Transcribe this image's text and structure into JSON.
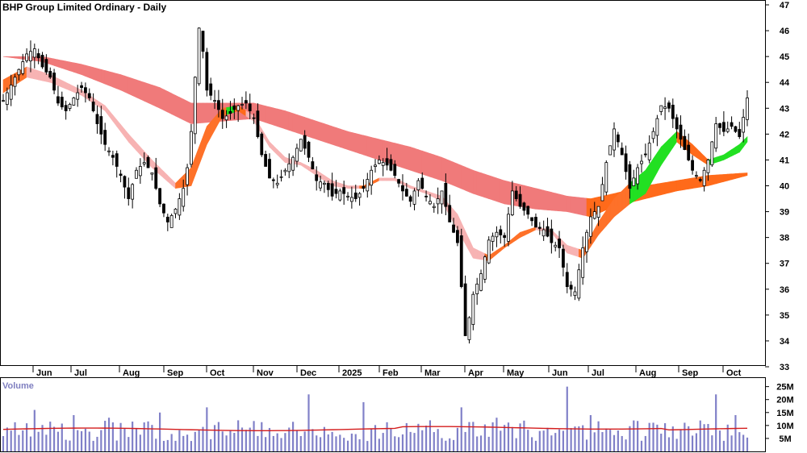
{
  "chart_data": {
    "type": "candlestick",
    "title": "BHP Group Limited Ordinary - Daily",
    "price_ylim": [
      33,
      47
    ],
    "price_ticks": [
      "33",
      "34",
      "35",
      "36",
      "37",
      "38",
      "39",
      "40",
      "41",
      "42",
      "43",
      "44",
      "45",
      "46",
      "47"
    ],
    "x_labels": [
      "Jun",
      "Jul",
      "Aug",
      "Sep",
      "Oct",
      "Nov",
      "Dec",
      "2025",
      "Feb",
      "Mar",
      "Apr",
      "May",
      "Jun",
      "Jul",
      "Aug",
      "Sep",
      "Oct"
    ],
    "close_path": [
      [
        0,
        43.3
      ],
      [
        3,
        44.2
      ],
      [
        6,
        45.1
      ],
      [
        8,
        45.3
      ],
      [
        10,
        44.6
      ],
      [
        12,
        44.2
      ],
      [
        14,
        43.2
      ],
      [
        16,
        42.9
      ],
      [
        18,
        43.4
      ],
      [
        20,
        43.8
      ],
      [
        22,
        43.4
      ],
      [
        24,
        42.4
      ],
      [
        26,
        41.6
      ],
      [
        28,
        41.1
      ],
      [
        30,
        40.4
      ],
      [
        32,
        39.5
      ],
      [
        34,
        40.6
      ],
      [
        36,
        40.9
      ],
      [
        38,
        40.5
      ],
      [
        40,
        39.3
      ],
      [
        42,
        38.6
      ],
      [
        44,
        39.1
      ],
      [
        46,
        39.9
      ],
      [
        47,
        40.7
      ],
      [
        48,
        42.1
      ],
      [
        49,
        44.2
      ],
      [
        50,
        46.1
      ],
      [
        51,
        45.2
      ],
      [
        52,
        43.7
      ],
      [
        54,
        43.3
      ],
      [
        56,
        42.6
      ],
      [
        58,
        42.8
      ],
      [
        60,
        43.1
      ],
      [
        62,
        43.2
      ],
      [
        64,
        42.6
      ],
      [
        66,
        41.2
      ],
      [
        68,
        40.3
      ],
      [
        70,
        40.1
      ],
      [
        72,
        40.6
      ],
      [
        74,
        41.1
      ],
      [
        76,
        41.8
      ],
      [
        78,
        41.1
      ],
      [
        80,
        40.2
      ],
      [
        82,
        40.1
      ],
      [
        84,
        39.6
      ],
      [
        86,
        39.8
      ],
      [
        88,
        39.6
      ],
      [
        90,
        39.5
      ],
      [
        92,
        39.9
      ],
      [
        94,
        40.6
      ],
      [
        96,
        41.0
      ],
      [
        98,
        40.8
      ],
      [
        100,
        40.4
      ],
      [
        102,
        39.8
      ],
      [
        104,
        39.4
      ],
      [
        106,
        40.2
      ],
      [
        108,
        39.6
      ],
      [
        110,
        39.2
      ],
      [
        112,
        39.8
      ],
      [
        114,
        38.6
      ],
      [
        116,
        37.8
      ],
      [
        117,
        36.1
      ],
      [
        118,
        34.2
      ],
      [
        119,
        34.9
      ],
      [
        120,
        35.8
      ],
      [
        122,
        36.6
      ],
      [
        124,
        37.9
      ],
      [
        126,
        38.2
      ],
      [
        128,
        38.0
      ],
      [
        130,
        39.8
      ],
      [
        132,
        39.2
      ],
      [
        134,
        38.9
      ],
      [
        136,
        38.4
      ],
      [
        138,
        38.3
      ],
      [
        140,
        37.8
      ],
      [
        142,
        37.6
      ],
      [
        144,
        36.1
      ],
      [
        146,
        35.9
      ],
      [
        148,
        37.6
      ],
      [
        150,
        38.8
      ],
      [
        152,
        39.2
      ],
      [
        154,
        40.9
      ],
      [
        156,
        42.2
      ],
      [
        158,
        41.2
      ],
      [
        160,
        39.9
      ],
      [
        162,
        40.7
      ],
      [
        164,
        41.2
      ],
      [
        166,
        42.1
      ],
      [
        168,
        43.1
      ],
      [
        170,
        43.0
      ],
      [
        172,
        42.2
      ],
      [
        174,
        41.4
      ],
      [
        176,
        40.6
      ],
      [
        178,
        40.2
      ],
      [
        180,
        41.0
      ],
      [
        182,
        42.4
      ],
      [
        184,
        42.1
      ],
      [
        186,
        42.3
      ],
      [
        188,
        41.9
      ],
      [
        190,
        43.4
      ]
    ],
    "ribbons": [
      {
        "role": "fast",
        "upper": [
          [
            0,
            44.1
          ],
          [
            6,
            44.6
          ],
          [
            12,
            44.3
          ],
          [
            20,
            43.7
          ],
          [
            26,
            43.1
          ],
          [
            32,
            42.0
          ],
          [
            38,
            41.0
          ],
          [
            44,
            40.1
          ],
          [
            48,
            40.7
          ],
          [
            52,
            42.3
          ],
          [
            56,
            43.0
          ],
          [
            60,
            43.1
          ],
          [
            64,
            42.7
          ],
          [
            68,
            41.7
          ],
          [
            72,
            41.1
          ],
          [
            76,
            40.9
          ],
          [
            80,
            40.6
          ],
          [
            84,
            40.2
          ],
          [
            88,
            40.0
          ],
          [
            92,
            40.0
          ],
          [
            96,
            40.3
          ],
          [
            100,
            40.3
          ],
          [
            104,
            40.0
          ],
          [
            108,
            39.8
          ],
          [
            112,
            39.6
          ],
          [
            116,
            38.9
          ],
          [
            120,
            37.6
          ],
          [
            124,
            37.3
          ],
          [
            128,
            37.7
          ],
          [
            132,
            38.2
          ],
          [
            136,
            38.4
          ],
          [
            140,
            38.3
          ],
          [
            144,
            37.7
          ],
          [
            148,
            37.5
          ],
          [
            152,
            38.6
          ],
          [
            156,
            39.5
          ],
          [
            160,
            40.1
          ],
          [
            164,
            40.6
          ],
          [
            168,
            41.5
          ],
          [
            172,
            42.1
          ],
          [
            176,
            41.6
          ],
          [
            180,
            41.0
          ],
          [
            184,
            41.2
          ],
          [
            188,
            41.6
          ],
          [
            190,
            41.9
          ]
        ],
        "lower": [
          [
            0,
            43.6
          ],
          [
            6,
            44.2
          ],
          [
            12,
            44.0
          ],
          [
            20,
            43.5
          ],
          [
            26,
            42.9
          ],
          [
            32,
            41.7
          ],
          [
            38,
            40.7
          ],
          [
            44,
            39.9
          ],
          [
            48,
            40.0
          ],
          [
            52,
            41.6
          ],
          [
            56,
            42.7
          ],
          [
            60,
            42.9
          ],
          [
            64,
            42.5
          ],
          [
            68,
            41.5
          ],
          [
            72,
            40.9
          ],
          [
            76,
            40.8
          ],
          [
            80,
            40.4
          ],
          [
            84,
            40.0
          ],
          [
            88,
            39.9
          ],
          [
            92,
            39.9
          ],
          [
            96,
            40.2
          ],
          [
            100,
            40.2
          ],
          [
            104,
            39.9
          ],
          [
            108,
            39.7
          ],
          [
            112,
            39.4
          ],
          [
            116,
            38.3
          ],
          [
            120,
            37.2
          ],
          [
            124,
            37.1
          ],
          [
            128,
            37.6
          ],
          [
            132,
            38.0
          ],
          [
            136,
            38.3
          ],
          [
            140,
            38.2
          ],
          [
            144,
            37.4
          ],
          [
            148,
            37.2
          ],
          [
            152,
            38.1
          ],
          [
            156,
            38.8
          ],
          [
            160,
            39.3
          ],
          [
            164,
            39.7
          ],
          [
            168,
            40.8
          ],
          [
            172,
            41.7
          ],
          [
            176,
            41.2
          ],
          [
            180,
            40.8
          ],
          [
            184,
            41.0
          ],
          [
            188,
            41.3
          ],
          [
            190,
            41.7
          ]
        ]
      },
      {
        "role": "slow",
        "upper": [
          [
            0,
            45.0
          ],
          [
            10,
            45.0
          ],
          [
            20,
            44.7
          ],
          [
            30,
            44.3
          ],
          [
            40,
            43.8
          ],
          [
            48,
            43.2
          ],
          [
            56,
            43.2
          ],
          [
            64,
            43.2
          ],
          [
            72,
            42.9
          ],
          [
            80,
            42.5
          ],
          [
            88,
            42.1
          ],
          [
            96,
            41.8
          ],
          [
            104,
            41.5
          ],
          [
            112,
            41.1
          ],
          [
            120,
            40.6
          ],
          [
            128,
            40.2
          ],
          [
            136,
            39.9
          ],
          [
            144,
            39.6
          ],
          [
            150,
            39.5
          ],
          [
            156,
            39.7
          ],
          [
            164,
            40.0
          ],
          [
            172,
            40.2
          ],
          [
            180,
            40.4
          ],
          [
            190,
            40.5
          ]
        ],
        "lower": [
          [
            0,
            45.0
          ],
          [
            10,
            44.8
          ],
          [
            20,
            44.3
          ],
          [
            30,
            43.7
          ],
          [
            40,
            43.0
          ],
          [
            48,
            42.4
          ],
          [
            56,
            42.5
          ],
          [
            64,
            42.6
          ],
          [
            72,
            42.2
          ],
          [
            80,
            41.8
          ],
          [
            88,
            41.4
          ],
          [
            96,
            41.0
          ],
          [
            104,
            40.6
          ],
          [
            112,
            40.2
          ],
          [
            120,
            39.7
          ],
          [
            128,
            39.3
          ],
          [
            136,
            39.1
          ],
          [
            144,
            39.0
          ],
          [
            150,
            38.8
          ],
          [
            156,
            39.2
          ],
          [
            164,
            39.5
          ],
          [
            172,
            39.8
          ],
          [
            180,
            40.0
          ],
          [
            190,
            40.4
          ]
        ]
      }
    ],
    "colors": {
      "candle": "#000000",
      "ribbon_bear_fast": "#f7b3b3",
      "ribbon_bear_slow": "#f07a7a",
      "ribbon_bull": "#22e022",
      "ribbon_mixed": "#ff6a1a",
      "volume_bar": "#8080c8",
      "volume_avg": "#d41c1c",
      "grid": "#000000"
    },
    "volume": {
      "title": "Volume",
      "ticks": [
        "5M",
        "10M",
        "15M",
        "20M",
        "25M"
      ],
      "ylim": [
        0,
        28
      ],
      "avg": 8.5,
      "spikes": [
        [
          8,
          16
        ],
        [
          18,
          14
        ],
        [
          27,
          13
        ],
        [
          40,
          15
        ],
        [
          52,
          17
        ],
        [
          60,
          12
        ],
        [
          78,
          22
        ],
        [
          92,
          19
        ],
        [
          117,
          17
        ],
        [
          126,
          13
        ],
        [
          144,
          25
        ],
        [
          150,
          14
        ],
        [
          165,
          11
        ],
        [
          182,
          22
        ],
        [
          187,
          14
        ]
      ]
    }
  }
}
